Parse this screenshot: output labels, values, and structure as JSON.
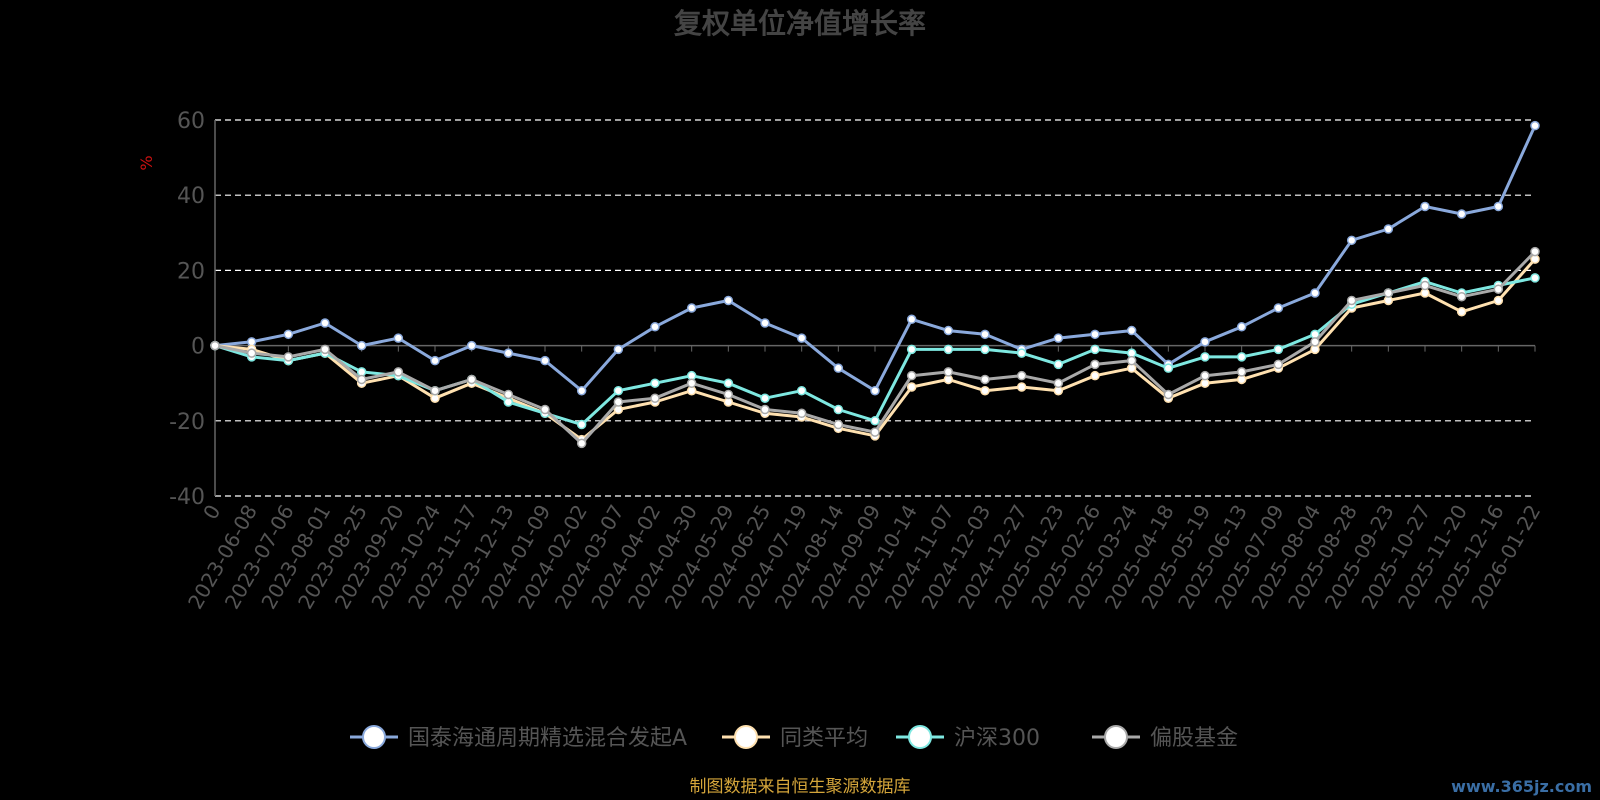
{
  "chart_data": {
    "type": "line",
    "title": "复权单位净值增长率",
    "ylabel": "%",
    "xlabel": "",
    "ylim": [
      -40,
      60
    ],
    "yticks": [
      -40,
      -20,
      0,
      20,
      40,
      60
    ],
    "grid": true,
    "legend_position": "bottom",
    "x_tick_labels": [
      "0",
      "2023-06-08",
      "2023-07-06",
      "2023-08-01",
      "2023-08-25",
      "2023-09-20",
      "2023-10-24",
      "2023-11-17",
      "2023-12-13",
      "2024-01-09",
      "2024-02-02",
      "2024-03-07",
      "2024-04-02",
      "2024-04-30",
      "2024-05-29",
      "2024-06-25",
      "2024-07-19",
      "2024-08-14",
      "2024-09-09",
      "2024-10-14",
      "2024-11-07",
      "2024-12-03",
      "2024-12-27",
      "2025-01-23",
      "2025-02-26",
      "2025-03-24",
      "2025-04-18",
      "2025-05-19",
      "2025-06-13",
      "2025-07-09",
      "2025-08-04",
      "2025-08-28",
      "2025-09-23",
      "2025-10-27",
      "2025-11-20",
      "2025-12-16",
      "2026-01-22"
    ],
    "x": [
      0,
      1,
      2,
      3,
      4,
      5,
      6,
      7,
      8,
      9,
      10,
      11,
      12,
      13,
      14,
      15,
      16,
      17,
      18,
      19,
      20,
      21,
      22,
      23,
      24,
      25,
      26,
      27,
      28,
      29,
      30,
      31,
      32,
      33,
      34,
      35,
      36
    ],
    "series": [
      {
        "name": "国泰海通周期精选混合发起A",
        "color": "#8aa9dc",
        "values": [
          0,
          1,
          3,
          6,
          0,
          2,
          -4,
          0,
          -2,
          -4,
          -12,
          -1,
          5,
          10,
          12,
          6,
          2,
          -6,
          -12,
          7,
          4,
          3,
          -1,
          2,
          3,
          4,
          -5,
          1,
          5,
          10,
          14,
          28,
          31,
          37,
          35,
          37,
          58.5
        ]
      },
      {
        "name": "同类平均",
        "color": "#ffe1b0",
        "values": [
          0,
          -1,
          -4,
          -2,
          -10,
          -8,
          -14,
          -10,
          -14,
          -18,
          -25,
          -17,
          -15,
          -12,
          -15,
          -18,
          -19,
          -22,
          -24,
          -11,
          -9,
          -12,
          -11,
          -12,
          -8,
          -6,
          -14,
          -10,
          -9,
          -6,
          -1,
          10,
          12,
          14,
          9,
          12,
          23
        ]
      },
      {
        "name": "沪深300",
        "color": "#7ee8e1",
        "values": [
          0,
          -3,
          -4,
          -2,
          -7,
          -8,
          -12,
          -9,
          -15,
          -18,
          -21,
          -12,
          -10,
          -8,
          -10,
          -14,
          -12,
          -17,
          -20,
          -1,
          -1,
          -1,
          -2,
          -5,
          -1,
          -2,
          -6,
          -3,
          -3,
          -1,
          3,
          11,
          14,
          17,
          14,
          16,
          18
        ]
      },
      {
        "name": "偏股基金",
        "color": "#a9a9a9",
        "values": [
          0,
          -2,
          -3,
          -1,
          -9,
          -7,
          -12,
          -9,
          -13,
          -17,
          -26,
          -15,
          -14,
          -10,
          -13,
          -17,
          -18,
          -21,
          -23,
          -8,
          -7,
          -9,
          -8,
          -10,
          -5,
          -4,
          -13,
          -8,
          -7,
          -5,
          1,
          12,
          14,
          16,
          13,
          15,
          25
        ]
      }
    ]
  },
  "source_note": "制图数据来自恒生聚源数据库",
  "watermark": "www.365jz.com"
}
